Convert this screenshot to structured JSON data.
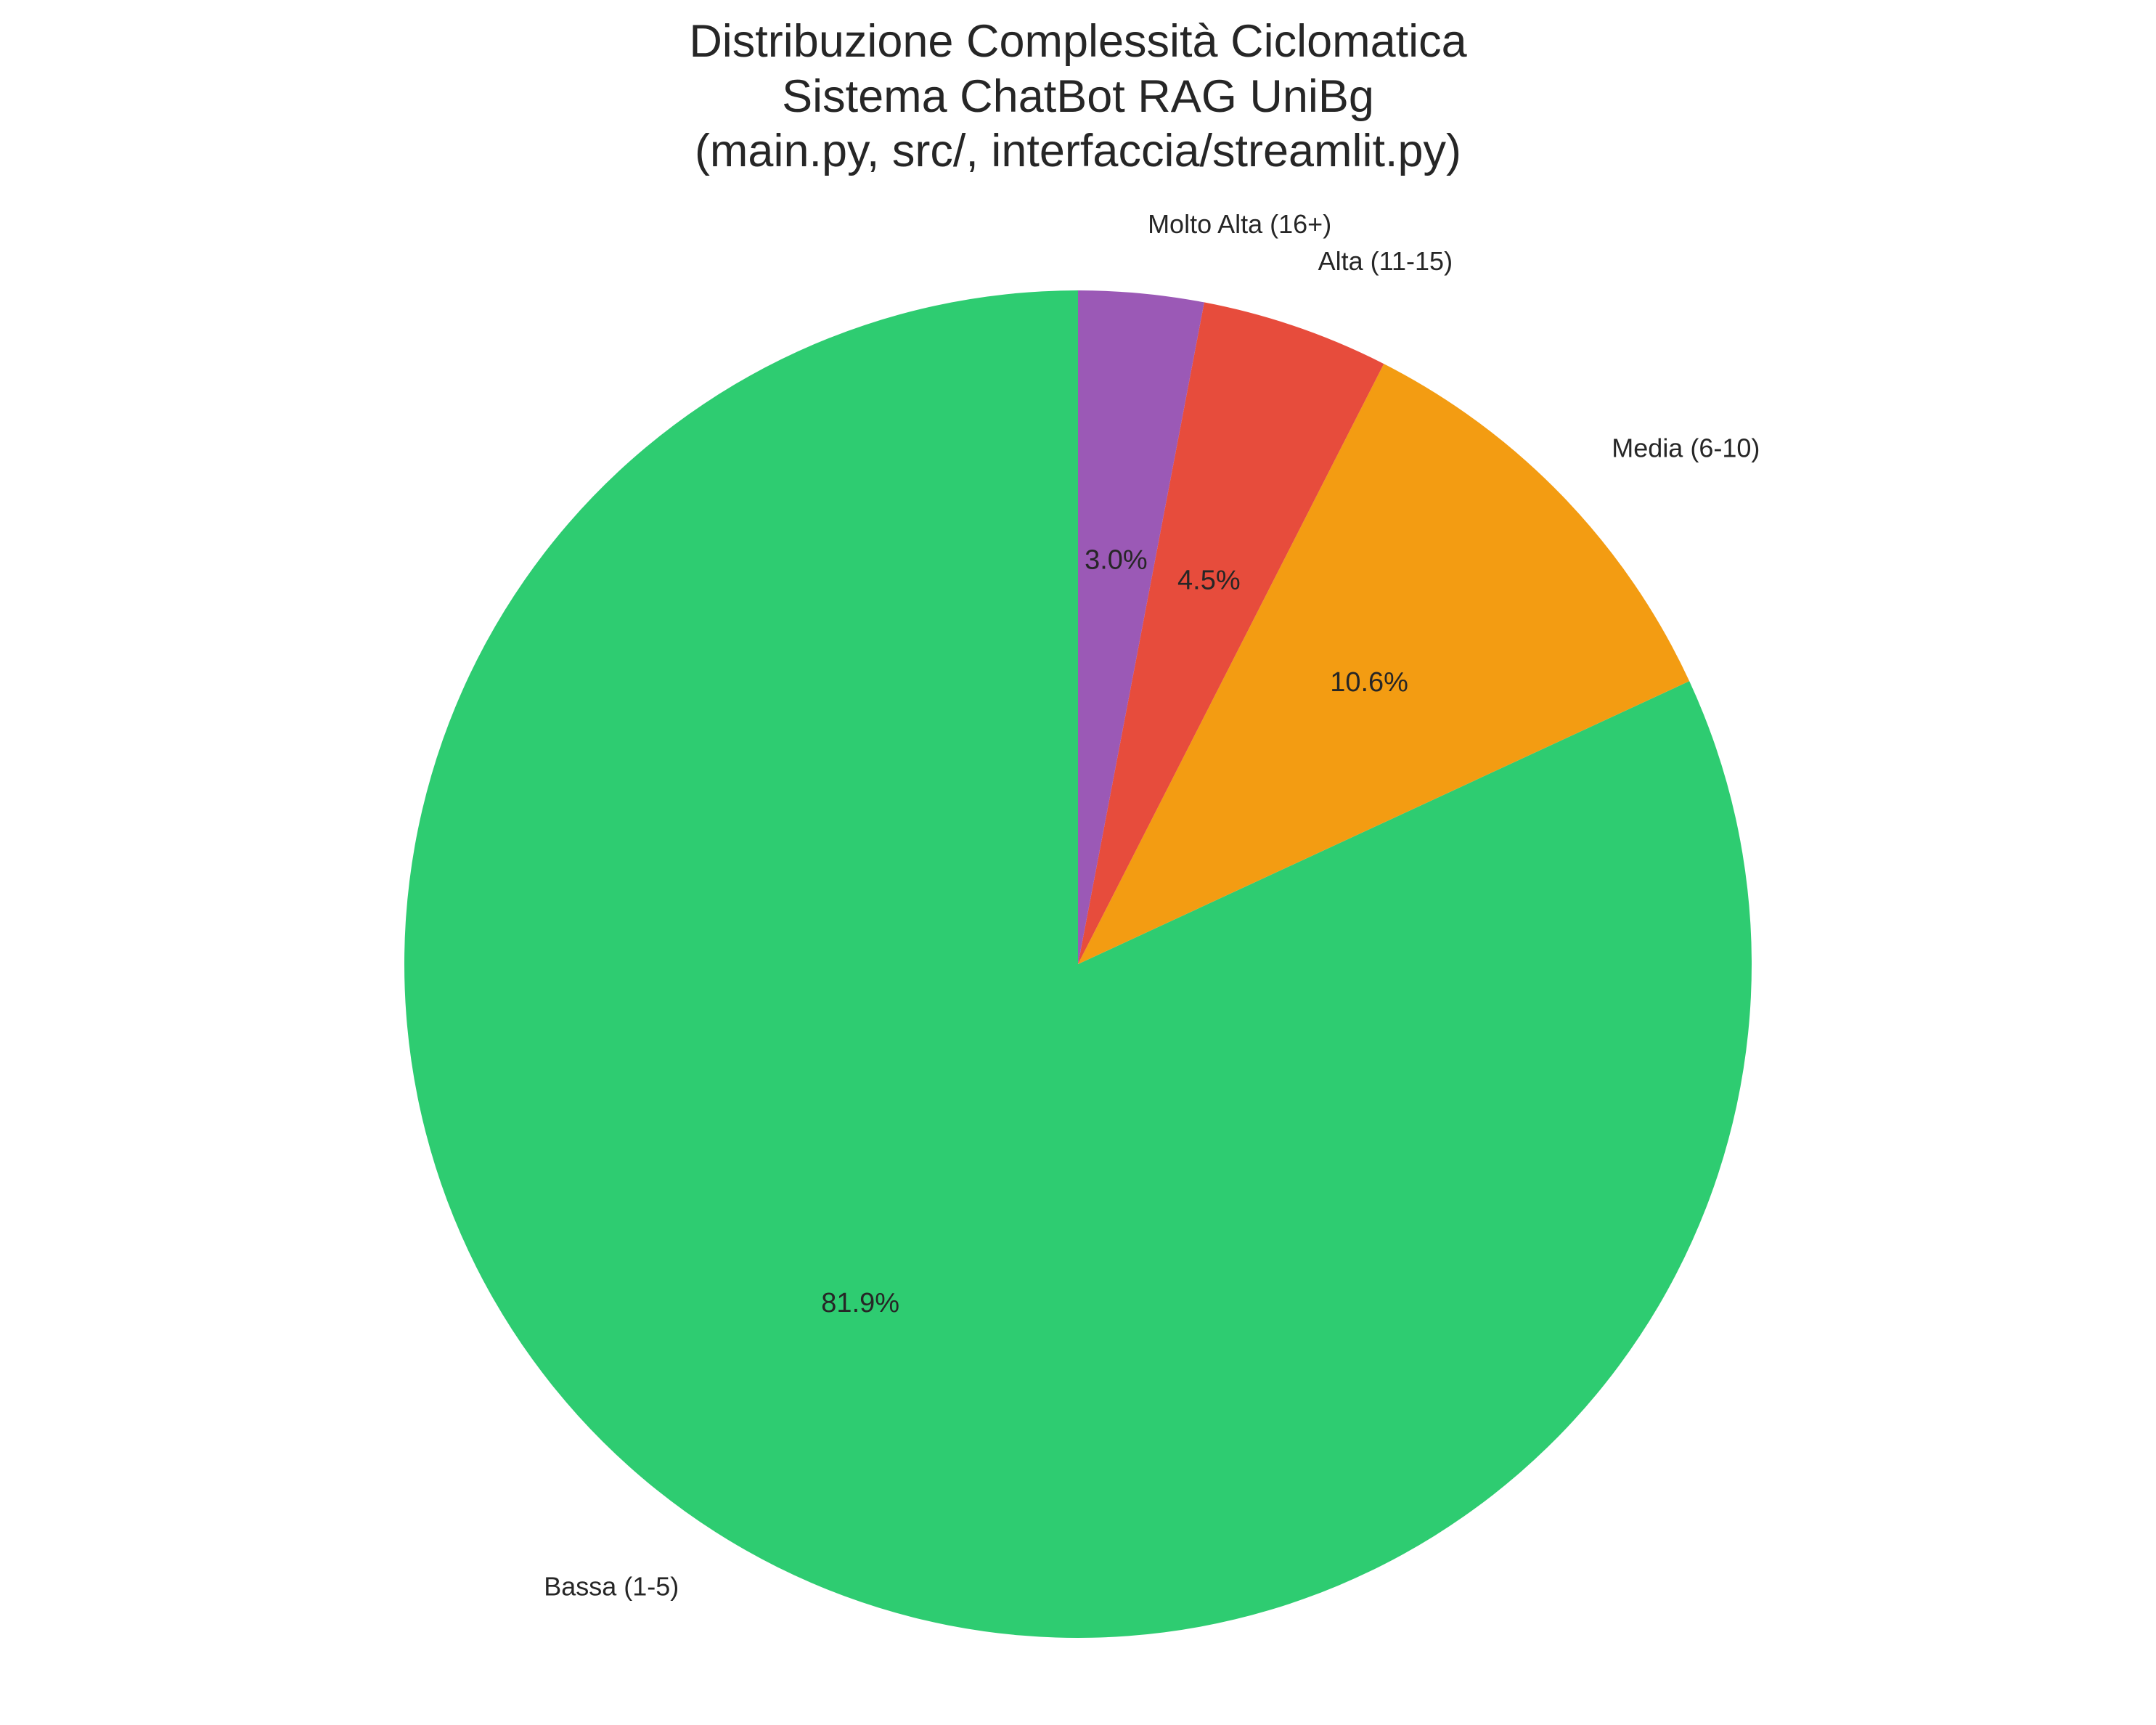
{
  "chart_data": {
    "type": "pie",
    "title": [
      "Distribuzione Complessità Ciclomatica",
      "Sistema ChatBot RAG UniBg",
      "(main.py, src/, interfaccia/streamlit.py)"
    ],
    "start_angle": "top",
    "direction": "counterclockwise",
    "slices": [
      {
        "label": "Bassa (1-5)",
        "value": 81.9,
        "pct_label": "81.9%",
        "color": "#2ecc71"
      },
      {
        "label": "Media (6-10)",
        "value": 10.6,
        "pct_label": "10.6%",
        "color": "#f39c12"
      },
      {
        "label": "Alta (11-15)",
        "value": 4.5,
        "pct_label": "4.5%",
        "color": "#e74c3c"
      },
      {
        "label": "Molto Alta (16+)",
        "value": 3.0,
        "pct_label": "3.0%",
        "color": "#9b59b6"
      }
    ]
  }
}
